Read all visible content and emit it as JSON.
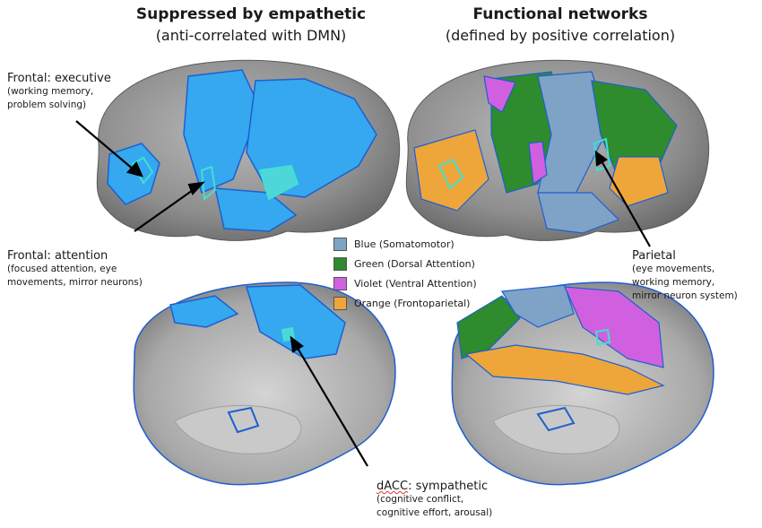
{
  "left_panel": {
    "title": "Suppressed by empathetic",
    "subtitle": "(anti-correlated with DMN)"
  },
  "right_panel": {
    "title": "Functional networks",
    "subtitle": "(defined by positive correlation)"
  },
  "annotations": {
    "frontal_executive": {
      "title": "Frontal: executive",
      "line1": "(working memory,",
      "line2": "problem solving)"
    },
    "frontal_attention": {
      "title": "Frontal: attention",
      "line1": "(focused attention, eye",
      "line2": "movements, mirror neurons)"
    },
    "parietal": {
      "title": "Parietal",
      "line1": "(eye movements,",
      "line2": "working memory,",
      "line3": "mirror neuron system)"
    },
    "dacc": {
      "title_prefix": "dACC",
      "title_suffix": ": sympathetic",
      "line1": "(cognitive conflict,",
      "line2": "cognitive effort, arousal)"
    }
  },
  "legend": [
    {
      "name": "Blue",
      "desc": "(Somatomotor)",
      "color": "#7ea3c7"
    },
    {
      "name": "Green",
      "desc": "(Dorsal Attention)",
      "color": "#2e8b2e"
    },
    {
      "name": "Violet",
      "desc": "(Ventral Attention)",
      "color": "#d060e0"
    },
    {
      "name": "Orange",
      "desc": "(Frontoparietal)",
      "color": "#eea63a"
    }
  ],
  "colors": {
    "brain_gray": "#9a9a9a",
    "highlight_blue": "#35a8f0",
    "outline_blue": "#1e5fd0",
    "cyan": "#40e0d0"
  }
}
